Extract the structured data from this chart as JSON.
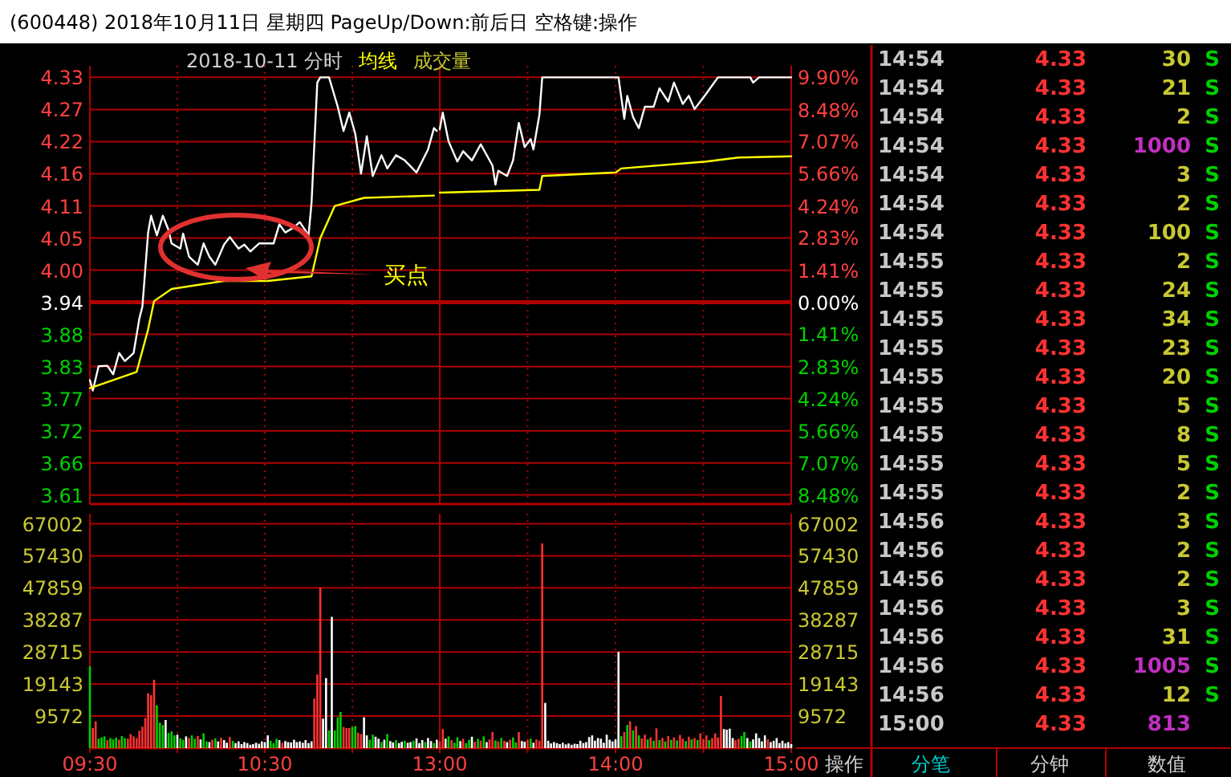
{
  "chart_data": [
    {
      "type": "line",
      "title": "(600448) 2018年10月11日 星期四 PageUp/Down:前后日 空格键:操作",
      "subtitle": "2018-10-11 分时",
      "legend": "top right",
      "grid": true,
      "tick_labels": "y",
      "xlim": [
        9.5,
        11.5
      ],
      "ylim": [
        3.59,
        4.35
      ],
      "yticks": [
        {
          "value": 3.6057,
          "label": "3.61"
        },
        {
          "value": 3.6614,
          "label": "3.66"
        },
        {
          "value": 3.7171,
          "label": "3.72"
        },
        {
          "value": 3.7729,
          "label": "3.77"
        },
        {
          "value": 3.8286,
          "label": "3.83"
        },
        {
          "value": 3.8843,
          "label": "3.88"
        },
        3.94,
        {
          "value": 3.9957,
          "label": "4.00"
        },
        {
          "value": 4.0514,
          "label": "4.05"
        },
        {
          "value": 4.1071,
          "label": "4.11"
        },
        {
          "value": 4.1629,
          "label": "4.16"
        },
        {
          "value": 4.2186,
          "label": "4.22"
        },
        {
          "value": 4.2743,
          "label": "4.27"
        },
        4.33
      ],
      "ref_lines": [
        {
          "axis": "y",
          "value": 3.94
        }
      ],
      "annotations": [
        "买点"
      ],
      "series": [
        {
          "color": "#ffffff",
          "x": [
            9.5,
            9.517,
            9.55,
            9.6,
            9.633,
            9.667,
            9.7,
            9.75,
            9.783,
            9.8,
            9.833,
            9.85,
            9.883,
            9.917,
            9.95,
            9.967,
            10.017,
            10.033,
            10.067,
            10.117,
            10.15,
            10.183,
            10.217,
            10.267,
            10.3,
            10.35,
            10.383,
            10.417,
            10.467,
            10.55,
            10.583,
            10.617,
            10.667,
            10.7,
            10.75,
            10.767,
            10.8,
            10.817,
            10.867,
            10.917,
            10.95,
            10.983,
            11.017,
            11.05,
            11.083,
            11.117,
            11.167,
            11.2,
            11.25,
            11.3,
            11.367,
            11.433,
            11.467,
            11.483
          ],
          "values": [
            3.805,
            3.787,
            3.829,
            3.83,
            3.815,
            3.852,
            3.838,
            3.852,
            3.912,
            3.932,
            4.061,
            4.09,
            4.056,
            4.09,
            4.065,
            4.042,
            4.033,
            4.059,
            4.019,
            4.005,
            4.042,
            4.019,
            4.005,
            4.04,
            4.053,
            4.033,
            4.04,
            4.028,
            4.042,
            4.042,
            4.075,
            4.061,
            4.07,
            4.079,
            4.056,
            4.112,
            4.321,
            4.33,
            4.33,
            4.279,
            4.237,
            4.269,
            4.232,
            4.163,
            4.228,
            4.159,
            4.195,
            4.172,
            4.195,
            4.186,
            4.165,
            4.205,
            4.242,
            4.237
          ]
        },
        {
          "name": "均线",
          "color": "#ffff00",
          "x": [
            9.5,
            9.767,
            9.833,
            9.867,
            9.967,
            10.267,
            10.517,
            10.767,
            10.817,
            10.9,
            11.067,
            11.467
          ],
          "values": [
            3.791,
            3.819,
            3.893,
            3.942,
            3.963,
            3.977,
            3.977,
            3.985,
            4.051,
            4.107,
            4.121,
            4.125
          ]
        }
      ]
    },
    {
      "type": "line",
      "grid": true,
      "tick_labels": "y",
      "xlim": [
        13,
        15
      ],
      "ylim": [
        3.59,
        4.35
      ],
      "y2lim": [
        -8.883,
        10.406
      ],
      "y2ticks": [
        {
          "value": -8.48,
          "label": "8.48%"
        },
        {
          "value": -7.07,
          "label": "7.07%"
        },
        {
          "value": -5.66,
          "label": "5.66%"
        },
        {
          "value": -4.24,
          "label": "4.24%"
        },
        {
          "value": -2.83,
          "label": "2.83%"
        },
        {
          "value": -1.41,
          "label": "1.41%"
        },
        {
          "value": 0,
          "label": "0.00%"
        },
        {
          "value": 1.41,
          "label": "1.41%"
        },
        {
          "value": 2.83,
          "label": "2.83%"
        },
        {
          "value": 4.24,
          "label": "4.24%"
        },
        {
          "value": 5.66,
          "label": "5.66%"
        },
        {
          "value": 7.07,
          "label": "7.07%"
        },
        {
          "value": 8.48,
          "label": "8.48%"
        },
        {
          "value": 9.9,
          "label": "9.90%"
        }
      ],
      "ref_lines": [
        {
          "axis": "y",
          "value": 3.94
        }
      ],
      "series": [
        {
          "color": "#ffffff",
          "x": [
            13,
            13.017,
            13.05,
            13.1,
            13.133,
            13.183,
            13.233,
            13.3,
            13.317,
            13.333,
            13.383,
            13.417,
            13.45,
            13.483,
            13.517,
            13.533,
            13.567,
            13.583,
            14.017,
            14.05,
            14.067,
            14.1,
            14.133,
            14.167,
            14.217,
            14.25,
            14.3,
            14.333,
            14.383,
            14.417,
            14.45,
            14.517,
            14.583,
            14.767,
            14.783,
            14.817,
            15
          ],
          "values": [
            4.24,
            4.269,
            4.219,
            4.184,
            4.202,
            4.186,
            4.214,
            4.177,
            4.144,
            4.168,
            4.159,
            4.186,
            4.251,
            4.209,
            4.223,
            4.205,
            4.265,
            4.33,
            4.33,
            4.258,
            4.298,
            4.261,
            4.242,
            4.279,
            4.279,
            4.311,
            4.288,
            4.321,
            4.284,
            4.298,
            4.275,
            4.302,
            4.33,
            4.33,
            4.321,
            4.33,
            4.33
          ]
        },
        {
          "color": "#ffff00",
          "x": [
            13,
            13.567,
            13.583,
            14,
            14.033,
            14.517,
            14.7,
            15
          ],
          "values": [
            4.13,
            4.135,
            4.159,
            4.165,
            4.172,
            4.184,
            4.191,
            4.193
          ]
        }
      ]
    },
    {
      "type": "bar",
      "title": "成交量",
      "grid": true,
      "xlim": [
        9.5,
        11.5
      ],
      "xticks": [
        {
          "value": 9.5,
          "label": "09:30"
        },
        {
          "value": 10,
          "label": null
        },
        {
          "value": 10.5,
          "label": "10:30"
        },
        {
          "value": 11,
          "label": null
        }
      ],
      "ylim": [
        0,
        70000
      ],
      "yticks": [
        9572,
        19143,
        28715,
        38287,
        47859,
        57430,
        67002
      ],
      "x": [
        9.5,
        9.517,
        9.533,
        9.55,
        9.567,
        9.583,
        9.6,
        9.617,
        9.633,
        9.65,
        9.667,
        9.683,
        9.7,
        9.717,
        9.733,
        9.75,
        9.767,
        9.783,
        9.8,
        9.817,
        9.833,
        9.85,
        9.867,
        9.883,
        9.9,
        9.917,
        9.933,
        9.95,
        9.967,
        9.983,
        10,
        10.017,
        10.033,
        10.05,
        10.067,
        10.083,
        10.1,
        10.117,
        10.133,
        10.15,
        10.167,
        10.183,
        10.2,
        10.217,
        10.233,
        10.25,
        10.267,
        10.283,
        10.3,
        10.317,
        10.333,
        10.35,
        10.367,
        10.383,
        10.4,
        10.417,
        10.433,
        10.45,
        10.467,
        10.483,
        10.5,
        10.517,
        10.533,
        10.55,
        10.567,
        10.583,
        10.6,
        10.617,
        10.633,
        10.65,
        10.667,
        10.683,
        10.7,
        10.717,
        10.733,
        10.75,
        10.767,
        10.783,
        10.8,
        10.817,
        10.833,
        10.85,
        10.867,
        10.883,
        10.9,
        10.917,
        10.933,
        10.95,
        10.967,
        10.983,
        11,
        11.017,
        11.033,
        11.05,
        11.067,
        11.083,
        11.1,
        11.117,
        11.133,
        11.15,
        11.167,
        11.183,
        11.2,
        11.217,
        11.233,
        11.25,
        11.267,
        11.283,
        11.3,
        11.317,
        11.333,
        11.35,
        11.367,
        11.383,
        11.4,
        11.417,
        11.433,
        11.45,
        11.467,
        11.483
      ],
      "values": [
        24400,
        6000,
        8000,
        2900,
        3200,
        3500,
        2400,
        3000,
        2600,
        3100,
        2500,
        3600,
        3000,
        2800,
        4200,
        3500,
        3000,
        5200,
        6400,
        9000,
        16400,
        15800,
        20400,
        12800,
        7600,
        6900,
        8400,
        4500,
        5000,
        3800,
        4000,
        2900,
        2500,
        3500,
        3000,
        3800,
        2800,
        3600,
        2600,
        4400,
        2000,
        1800,
        2500,
        2900,
        2000,
        3100,
        2400,
        1600,
        3300,
        2200,
        1500,
        2000,
        1200,
        1800,
        1500,
        1000,
        1200,
        1600,
        1300,
        2000,
        1800,
        3800,
        2200,
        1500,
        2800,
        2400,
        1600,
        2100,
        1800,
        1700,
        2500,
        1800,
        2000,
        1600,
        2400,
        1500,
        2000,
        14800,
        22000,
        47900,
        8800,
        20900,
        5300,
        39200,
        5300,
        9200,
        10800,
        6300,
        6000,
        6000,
        6300,
        6600,
        4600,
        4200,
        9200,
        3800,
        2500,
        4000,
        3400,
        2800,
        1800,
        2500,
        4200,
        2100,
        1700,
        2400,
        1500,
        1900,
        2200,
        1600,
        1800,
        2200,
        2900,
        1500,
        2400,
        1800,
        3000,
        2100,
        1500,
        2500
      ],
      "colors": [
        "#00d000",
        "#ff3232",
        "#ff3232",
        "#00d000",
        "#00d000",
        "#00d000",
        "#ff3232",
        "#00d000",
        "#00d000",
        "#00d000",
        "#ff3232",
        "#00d000",
        "#00d000",
        "#ff3232",
        "#ff3232",
        "#ff3232",
        "#ff3232",
        "#ff3232",
        "#ff3232",
        "#ff3232",
        "#ff3232",
        "#ff3232",
        "#ff3232",
        "#00d000",
        "#00d000",
        "#00d000",
        "#ffffff",
        "#00d000",
        "#00d000",
        "#00d000",
        "#ffffff",
        "#00d000",
        "#00d000",
        "#ffffff",
        "#ff3232",
        "#00d000",
        "#00d000",
        "#ff3232",
        "#ffffff",
        "#00d000",
        "#00d000",
        "#ffffff",
        "#ff3232",
        "#00d000",
        "#ffffff",
        "#ff3232",
        "#ffffff",
        "#ffffff",
        "#ff3232",
        "#00d000",
        "#ffffff",
        "#ffffff",
        "#ffffff",
        "#ffffff",
        "#ffffff",
        "#ffffff",
        "#ffffff",
        "#ffffff",
        "#ffffff",
        "#ffffff",
        "#ffffff",
        "#ffffff",
        "#00d000",
        "#00d000",
        "#00d000",
        "#ffffff",
        "#ff3232",
        "#ffffff",
        "#ffffff",
        "#ffffff",
        "#ffffff",
        "#ffffff",
        "#ffffff",
        "#ffffff",
        "#ffffff",
        "#ffffff",
        "#ffffff",
        "#ff3232",
        "#ff3232",
        "#ff3232",
        "#ffffff",
        "#ffffff",
        "#00d000",
        "#ffffff",
        "#00d000",
        "#00d000",
        "#00d000",
        "#ff3232",
        "#ff3232",
        "#ff3232",
        "#00d000",
        "#00d000",
        "#ff3232",
        "#ff3232",
        "#ffffff",
        "#ffffff",
        "#00d000",
        "#00d000",
        "#ffffff",
        "#ffffff",
        "#00d000",
        "#ffffff",
        "#00d000",
        "#ffffff",
        "#ffffff",
        "#00d000",
        "#ffffff",
        "#ffffff",
        "#00d000",
        "#ffffff",
        "#ffffff",
        "#00d000",
        "#ffffff",
        "#ffffff",
        "#ffffff",
        "#00d000",
        "#ffffff",
        "#ffffff",
        "#00d000",
        "#ffffff"
      ]
    },
    {
      "type": "bar",
      "grid": true,
      "xlim": [
        13,
        15
      ],
      "xticks": [
        {
          "value": 13,
          "label": "13:00"
        },
        {
          "value": 13.5,
          "label": null
        },
        {
          "value": 14,
          "label": "14:00"
        },
        {
          "value": 14.5,
          "label": null
        },
        {
          "value": 15,
          "label": "15:00"
        }
      ],
      "y2lim": [
        0,
        70000
      ],
      "y2ticks": [
        9572,
        19143,
        28715,
        38287,
        47859,
        57430,
        67002
      ],
      "x": [
        13,
        13.017,
        13.033,
        13.05,
        13.067,
        13.083,
        13.1,
        13.117,
        13.133,
        13.15,
        13.167,
        13.183,
        13.2,
        13.217,
        13.233,
        13.25,
        13.267,
        13.283,
        13.3,
        13.317,
        13.333,
        13.35,
        13.367,
        13.383,
        13.4,
        13.417,
        13.433,
        13.45,
        13.467,
        13.483,
        13.5,
        13.517,
        13.533,
        13.55,
        13.567,
        13.583,
        13.6,
        13.617,
        13.633,
        13.65,
        13.667,
        13.683,
        13.7,
        13.717,
        13.733,
        13.75,
        13.767,
        13.783,
        13.8,
        13.817,
        13.833,
        13.85,
        13.867,
        13.883,
        13.9,
        13.917,
        13.933,
        13.95,
        13.967,
        13.983,
        14,
        14.017,
        14.033,
        14.05,
        14.067,
        14.083,
        14.1,
        14.117,
        14.133,
        14.15,
        14.167,
        14.183,
        14.2,
        14.217,
        14.233,
        14.25,
        14.267,
        14.283,
        14.3,
        14.317,
        14.333,
        14.35,
        14.367,
        14.383,
        14.4,
        14.417,
        14.433,
        14.45,
        14.467,
        14.483,
        14.5,
        14.517,
        14.533,
        14.55,
        14.567,
        14.583,
        14.6,
        14.617,
        14.633,
        14.65,
        14.667,
        14.683,
        14.7,
        14.717,
        14.733,
        14.75,
        14.767,
        14.783,
        14.8,
        14.817,
        14.833,
        14.85,
        14.867,
        14.883,
        14.9,
        14.917,
        14.933,
        14.95,
        14.967,
        14.983,
        15
      ],
      "series": [
        {
          "axis": "y2",
          "values": [
            2000,
            5700,
            2800,
            3500,
            2400,
            1600,
            3200,
            2100,
            2800,
            1500,
            2500,
            3400,
            1900,
            2800,
            2200,
            3500,
            1800,
            2600,
            4800,
            2300,
            2000,
            3000,
            2200,
            1800,
            2500,
            3200,
            1700,
            4800,
            2100,
            1900,
            2400,
            2800,
            1600,
            2600,
            2200,
            61100,
            13500,
            2200,
            1400,
            1800,
            1500,
            1200,
            1600,
            1100,
            1400,
            1000,
            1300,
            1200,
            2200,
            1500,
            1800,
            3300,
            3800,
            2200,
            3000,
            2800,
            1600,
            4000,
            2500,
            2000,
            2600,
            28700,
            3600,
            4800,
            6900,
            8000,
            5300,
            6600,
            3800,
            2900,
            4000,
            2600,
            3200,
            2200,
            5900,
            2400,
            3000,
            2000,
            3600,
            2500,
            3200,
            2300,
            3900,
            2800,
            2100,
            3400,
            2600,
            3000,
            2400,
            4400,
            2600,
            3800,
            2400,
            3000,
            4400,
            3200,
            15600,
            5700,
            5500,
            5800,
            3000,
            2400,
            2800,
            3600,
            4800,
            3000,
            2000,
            2600,
            4400,
            3000,
            2000,
            3800,
            2600,
            1800,
            2200,
            3000,
            1500,
            2200,
            1400,
            1800,
            1200
          ],
          "colors": [
            "#ff3232",
            "#ff3232",
            "#ffffff",
            "#00d000",
            "#ff3232",
            "#00d000",
            "#00d000",
            "#ffffff",
            "#ff3232",
            "#00d000",
            "#00d000",
            "#ffffff",
            "#ff3232",
            "#00d000",
            "#ff3232",
            "#00d000",
            "#ffffff",
            "#ff3232",
            "#ff3232",
            "#00d000",
            "#ff3232",
            "#00d000",
            "#ff3232",
            "#ffffff",
            "#ff3232",
            "#00d000",
            "#00d000",
            "#ff3232",
            "#ffffff",
            "#ffffff",
            "#ff3232",
            "#00d000",
            "#ffffff",
            "#ff3232",
            "#ff3232",
            "#ff3232",
            "#ffffff",
            "#ffffff",
            "#ffffff",
            "#ffffff",
            "#ffffff",
            "#ffffff",
            "#ffffff",
            "#ffffff",
            "#ffffff",
            "#ffffff",
            "#ffffff",
            "#ffffff",
            "#ffffff",
            "#ffffff",
            "#ffffff",
            "#ffffff",
            "#ffffff",
            "#ffffff",
            "#ffffff",
            "#ffffff",
            "#ffffff",
            "#ffffff",
            "#ffffff",
            "#ffffff",
            "#ffffff",
            "#ffffff",
            "#00d000",
            "#ff3232",
            "#00d000",
            "#ff3232",
            "#00d000",
            "#ff3232",
            "#00d000",
            "#ff3232",
            "#ff3232",
            "#00d000",
            "#ff3232",
            "#00d000",
            "#ff3232",
            "#00d000",
            "#ff3232",
            "#00d000",
            "#ff3232",
            "#00d000",
            "#ff3232",
            "#00d000",
            "#ff3232",
            "#ff3232",
            "#00d000",
            "#ff3232",
            "#00d000",
            "#ff3232",
            "#00d000",
            "#ff3232",
            "#ff3232",
            "#ff3232",
            "#00d000",
            "#ff3232",
            "#ff3232",
            "#ff3232",
            "#ff3232",
            "#ffffff",
            "#ffffff",
            "#ffffff",
            "#ffffff",
            "#ff3232",
            "#ff3232",
            "#00d000",
            "#00d000",
            "#ffffff",
            "#00d000",
            "#ffffff",
            "#ffffff",
            "#ffffff",
            "#ffffff",
            "#ffffff",
            "#ff3232",
            "#ffffff",
            "#ffffff",
            "#ffffff",
            "#ffffff",
            "#ffffff",
            "#ffffff",
            "#ffffff",
            "#ffffff"
          ]
        }
      ]
    },
    {
      "type": "other",
      "data_labels": true,
      "categories": [
        "14:54",
        "14:54",
        "14:54",
        "14:54",
        "14:54",
        "14:54",
        "14:54",
        "14:55",
        "14:55",
        "14:55",
        "14:55",
        "14:55",
        "14:55",
        "14:55",
        "14:55",
        "14:55",
        "14:56",
        "14:56",
        "14:56",
        "14:56",
        "14:56",
        "14:56",
        "14:56",
        "15:00"
      ],
      "series": [
        {
          "color": "#ff3232",
          "values": [
            4.33,
            4.33,
            4.33,
            4.33,
            4.33,
            4.33,
            4.33,
            4.33,
            4.33,
            4.33,
            4.33,
            4.33,
            4.33,
            4.33,
            4.33,
            4.33,
            4.33,
            4.33,
            4.33,
            4.33,
            4.33,
            4.33,
            4.33,
            4.33
          ]
        },
        {
          "colors": [
            "#c8c832",
            "#c8c832",
            "#c8c832",
            "#c030c0",
            "#c8c832",
            "#c8c832",
            "#c8c832",
            "#c8c832",
            "#c8c832",
            "#c8c832",
            "#c8c832",
            "#c8c832",
            "#c8c832",
            "#c8c832",
            "#c8c832",
            "#c8c832",
            "#c8c832",
            "#c8c832",
            "#c8c832",
            "#c8c832",
            "#c8c832",
            "#c030c0",
            "#c8c832",
            "#c030c0"
          ],
          "values": [
            30,
            21,
            2,
            1000,
            3,
            2,
            100,
            2,
            24,
            34,
            23,
            20,
            5,
            8,
            5,
            2,
            3,
            2,
            2,
            3,
            31,
            1005,
            12,
            813
          ]
        }
      ],
      "annotations": [
        "S",
        "S",
        "S",
        "S",
        "S",
        "S",
        "S",
        "S",
        "S",
        "S",
        "S",
        "S",
        "S",
        "S",
        "S",
        "S",
        "S",
        "S",
        "S",
        "S",
        "S",
        "S",
        "S",
        "操作",
        "分笔",
        "分钟",
        "数值"
      ]
    }
  ]
}
